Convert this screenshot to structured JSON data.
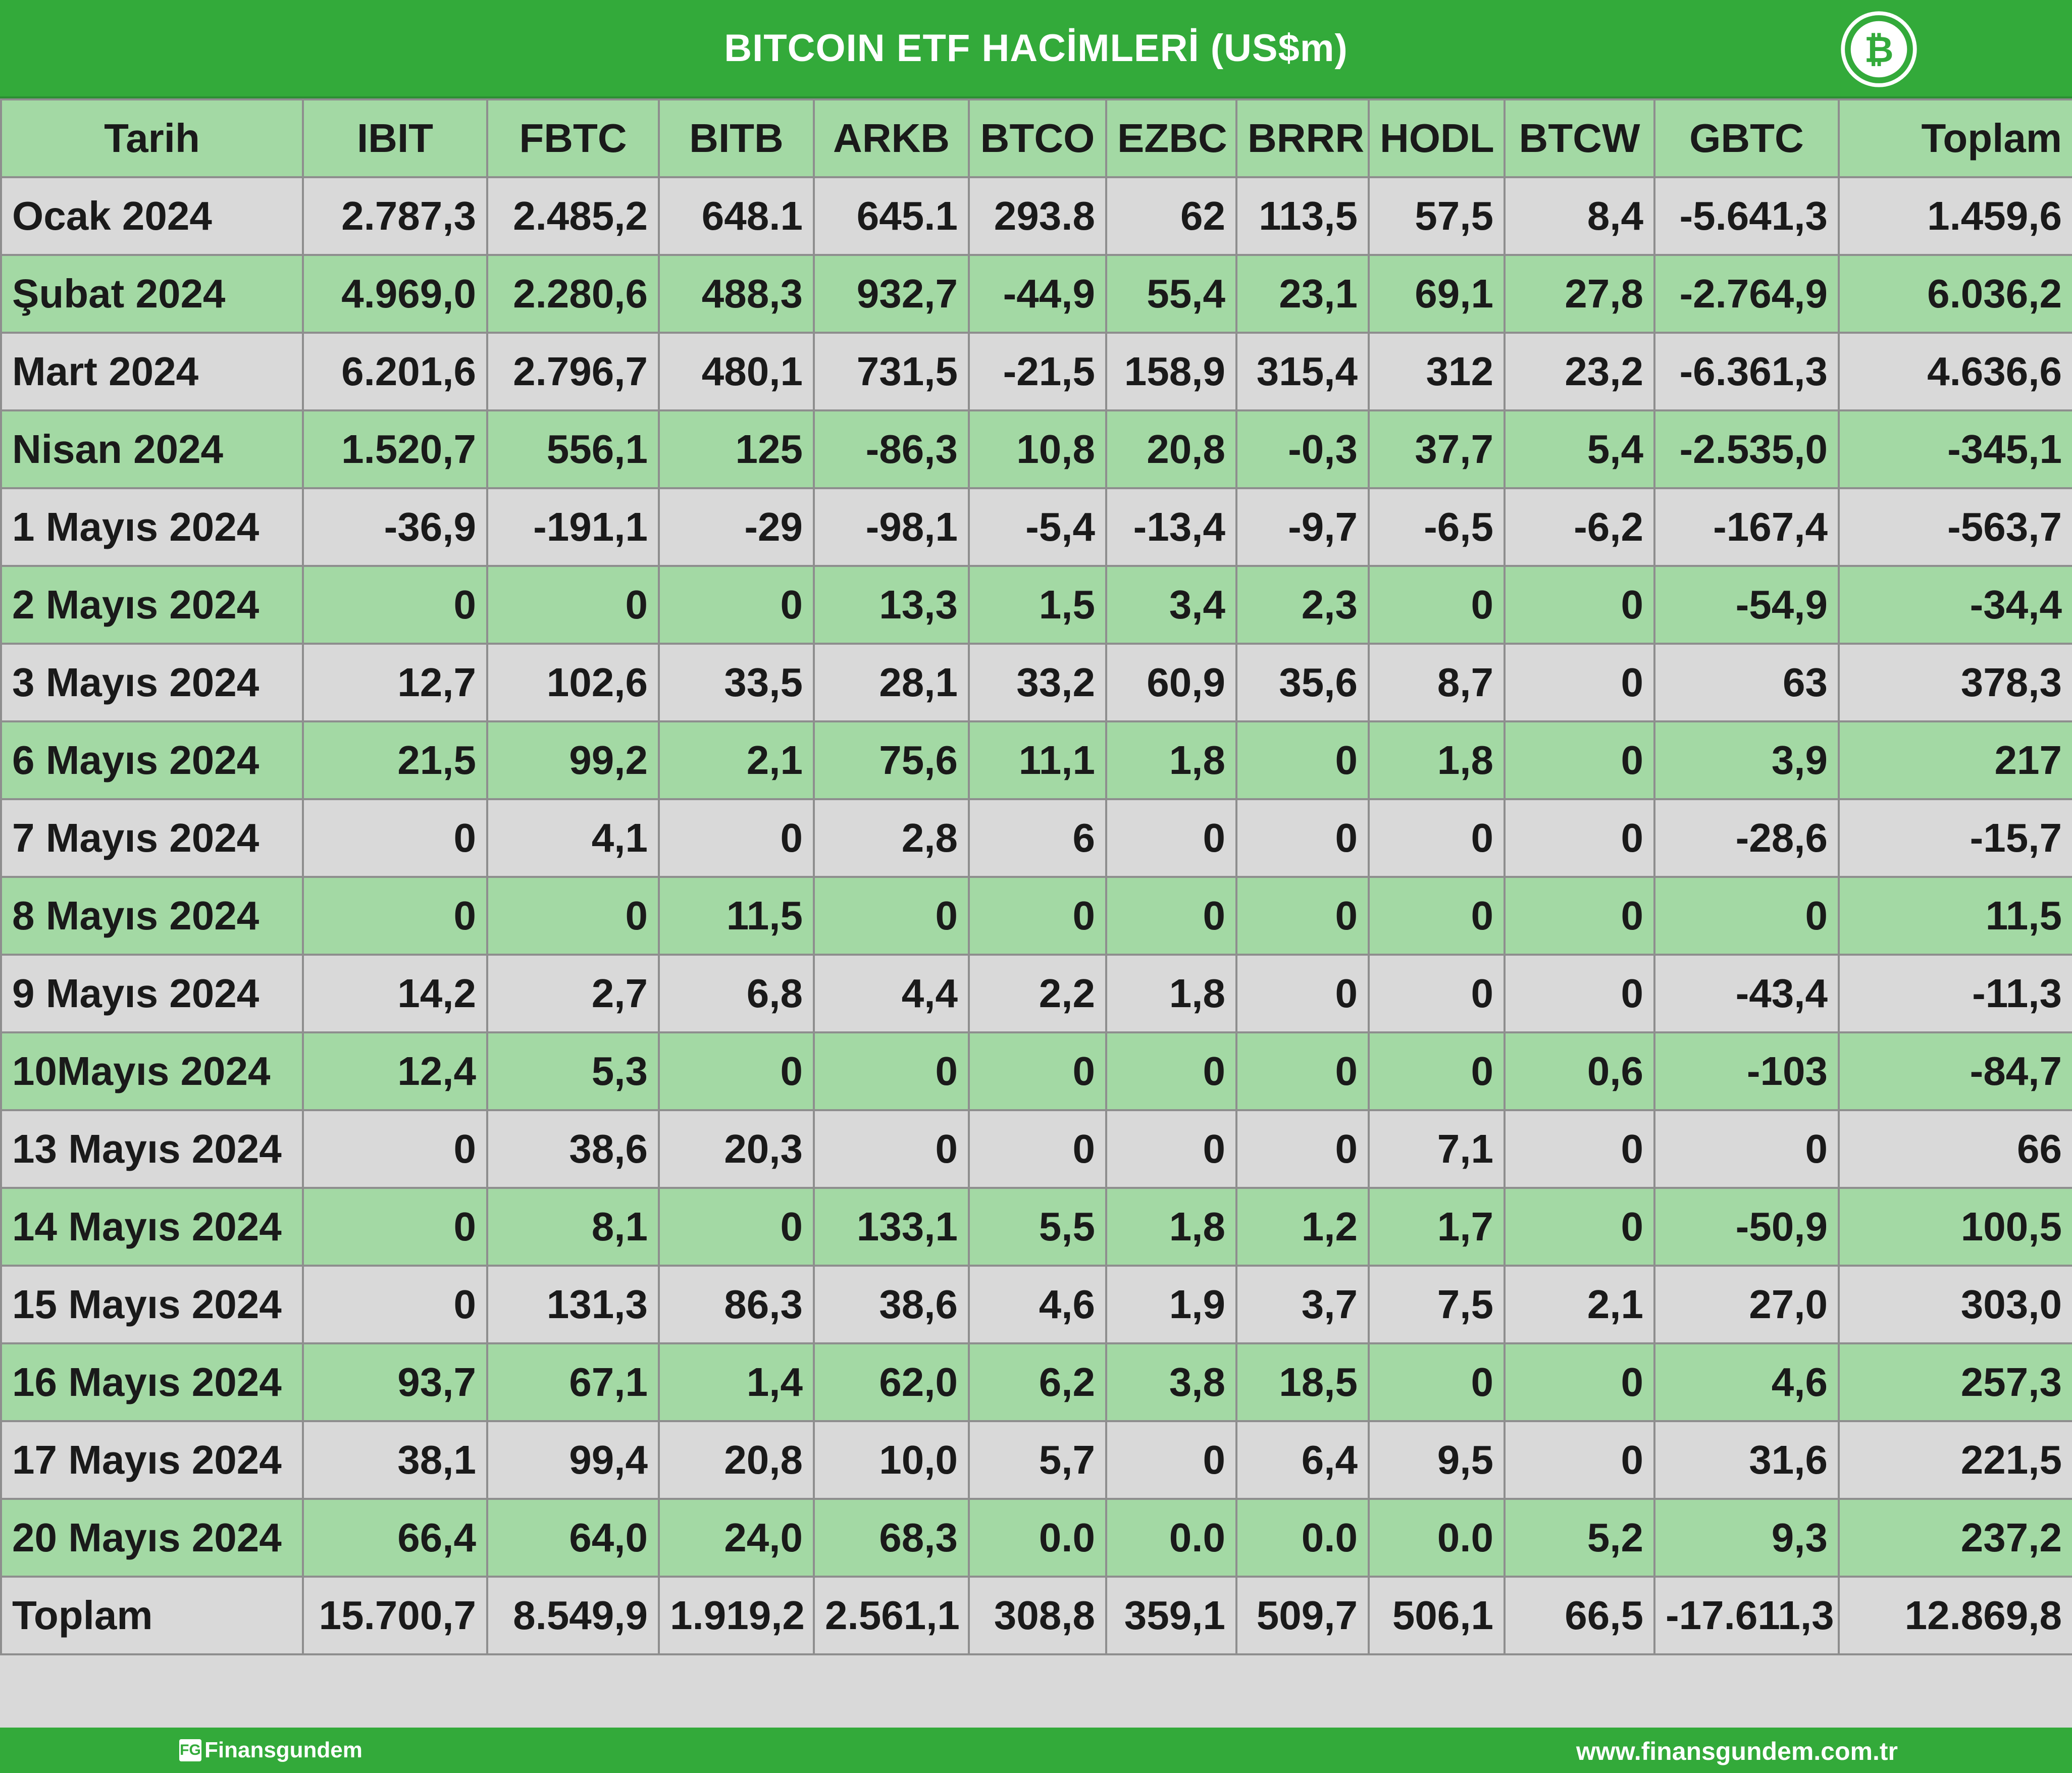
{
  "title": "BITCOIN ETF HACİMLERİ (US$m)",
  "colors": {
    "brand_green": "#33aa3a",
    "row_green": "#a3d9a4",
    "row_grey": "#d9d9d9"
  },
  "logo_icon": "bitcoin-icon",
  "table": {
    "headers": [
      "Tarih",
      "IBIT",
      "FBTC",
      "BITB",
      "ARKB",
      "BTCO",
      "EZBC",
      "BRRR",
      "HODL",
      "BTCW",
      "GBTC",
      "Toplam"
    ],
    "rows": [
      [
        "Ocak 2024",
        "2.787,3",
        "2.485,2",
        "648.1",
        "645.1",
        "293.8",
        "62",
        "113,5",
        "57,5",
        "8,4",
        "-5.641,3",
        "1.459,6"
      ],
      [
        "Şubat 2024",
        "4.969,0",
        "2.280,6",
        "488,3",
        "932,7",
        "-44,9",
        "55,4",
        "23,1",
        "69,1",
        "27,8",
        "-2.764,9",
        "6.036,2"
      ],
      [
        "Mart 2024",
        "6.201,6",
        "2.796,7",
        "480,1",
        "731,5",
        "-21,5",
        "158,9",
        "315,4",
        "312",
        "23,2",
        "-6.361,3",
        "4.636,6"
      ],
      [
        "Nisan 2024",
        "1.520,7",
        "556,1",
        "125",
        "-86,3",
        "10,8",
        "20,8",
        "-0,3",
        "37,7",
        "5,4",
        "-2.535,0",
        "-345,1"
      ],
      [
        "1 Mayıs 2024",
        "-36,9",
        "-191,1",
        "-29",
        "-98,1",
        "-5,4",
        "-13,4",
        "-9,7",
        "-6,5",
        "-6,2",
        "-167,4",
        "-563,7"
      ],
      [
        "2 Mayıs 2024",
        "0",
        "0",
        "0",
        "13,3",
        "1,5",
        "3,4",
        "2,3",
        "0",
        "0",
        "-54,9",
        "-34,4"
      ],
      [
        "3 Mayıs 2024",
        "12,7",
        "102,6",
        "33,5",
        "28,1",
        "33,2",
        "60,9",
        "35,6",
        "8,7",
        "0",
        "63",
        "378,3"
      ],
      [
        "6 Mayıs 2024",
        "21,5",
        "99,2",
        "2,1",
        "75,6",
        "11,1",
        "1,8",
        "0",
        "1,8",
        "0",
        "3,9",
        "217"
      ],
      [
        "7 Mayıs 2024",
        "0",
        "4,1",
        "0",
        "2,8",
        "6",
        "0",
        "0",
        "0",
        "0",
        "-28,6",
        "-15,7"
      ],
      [
        "8 Mayıs 2024",
        "0",
        "0",
        "11,5",
        "0",
        "0",
        "0",
        "0",
        "0",
        "0",
        "0",
        "11,5"
      ],
      [
        "9 Mayıs 2024",
        "14,2",
        "2,7",
        "6,8",
        "4,4",
        "2,2",
        "1,8",
        "0",
        "0",
        "0",
        "-43,4",
        "-11,3"
      ],
      [
        " 10Mayıs 2024",
        "12,4",
        "5,3",
        "0",
        "0",
        "0",
        "0",
        "0",
        "0",
        "0,6",
        "-103",
        "-84,7"
      ],
      [
        "13 Mayıs 2024",
        "0",
        "38,6",
        "20,3",
        "0",
        "0",
        "0",
        "0",
        "7,1",
        "0",
        "0",
        "66"
      ],
      [
        "14 Mayıs 2024",
        "0",
        "8,1",
        "0",
        "133,1",
        "5,5",
        "1,8",
        "1,2",
        "1,7",
        "0",
        "-50,9",
        "100,5"
      ],
      [
        "15 Mayıs 2024",
        "0",
        "131,3",
        "86,3",
        "38,6",
        "4,6",
        "1,9",
        "3,7",
        "7,5",
        "2,1",
        "27,0",
        "303,0"
      ],
      [
        "16 Mayıs 2024",
        "93,7",
        "67,1",
        "1,4",
        "62,0",
        "6,2",
        "3,8",
        "18,5",
        "0",
        "0",
        "4,6",
        "257,3"
      ],
      [
        "17 Mayıs 2024",
        "38,1",
        "99,4",
        "20,8",
        "10,0",
        "5,7",
        "0",
        "6,4",
        "9,5",
        "0",
        "31,6",
        "221,5"
      ],
      [
        "20 Mayıs 2024",
        "66,4",
        "64,0",
        "24,0",
        "68,3",
        "0.0",
        "0.0",
        "0.0",
        "0.0",
        "5,2",
        "9,3",
        "237,2"
      ]
    ],
    "total_row": [
      "Toplam",
      "15.700,7",
      "8.549,9",
      "1.919,2",
      "2.561,1",
      "308,8",
      "359,1",
      "509,7",
      "506,1",
      "66,5",
      "-17.611,3",
      "12.869,8"
    ]
  },
  "footer": {
    "brand": "Finansgundem",
    "brand_mark": "FG",
    "url": "www.finansgundem.com.tr"
  }
}
